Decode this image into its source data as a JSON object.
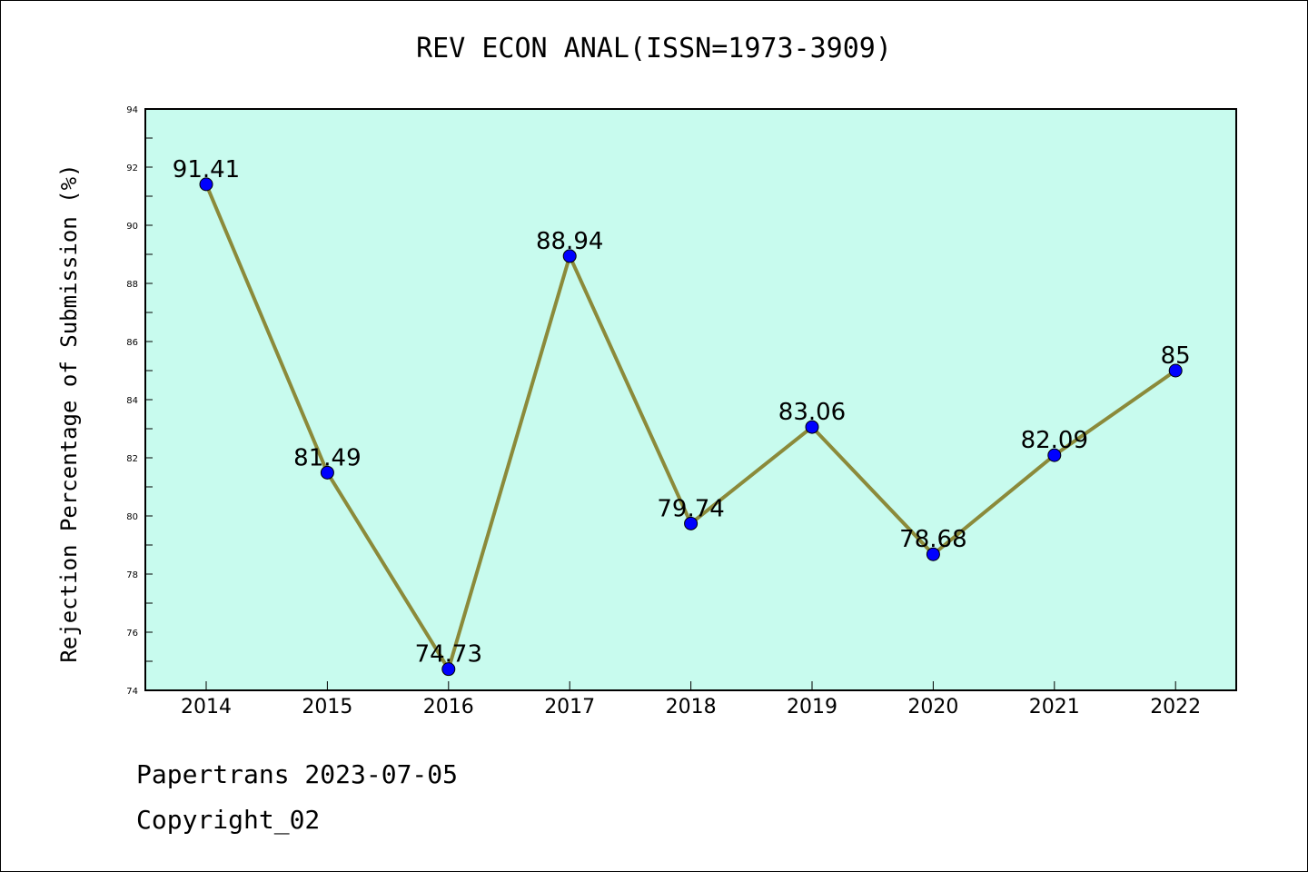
{
  "chart_data": {
    "type": "line",
    "title": "REV ECON ANAL(ISSN=1973-3909)",
    "xlabel": "",
    "ylabel": "Rejection Percentage of Submission (%)",
    "categories": [
      "2014",
      "2015",
      "2016",
      "2017",
      "2018",
      "2019",
      "2020",
      "2021",
      "2022"
    ],
    "values": [
      91.41,
      81.49,
      74.73,
      88.94,
      79.74,
      83.06,
      78.68,
      82.09,
      85
    ],
    "data_labels": [
      "91.41",
      "81.49",
      "74.73",
      "88.94",
      "79.74",
      "83.06",
      "78.68",
      "82.09",
      "85"
    ],
    "ylim": [
      74,
      94
    ],
    "yticks": [
      74,
      76,
      78,
      80,
      82,
      84,
      86,
      88,
      90,
      92,
      94
    ],
    "grid": false,
    "colors": {
      "plot_background": "#c8fbee",
      "line": "#8b8a3a",
      "marker": "#0000ff"
    }
  },
  "footer": {
    "line1": "Papertrans 2023-07-05",
    "line2": "Copyright_02"
  }
}
